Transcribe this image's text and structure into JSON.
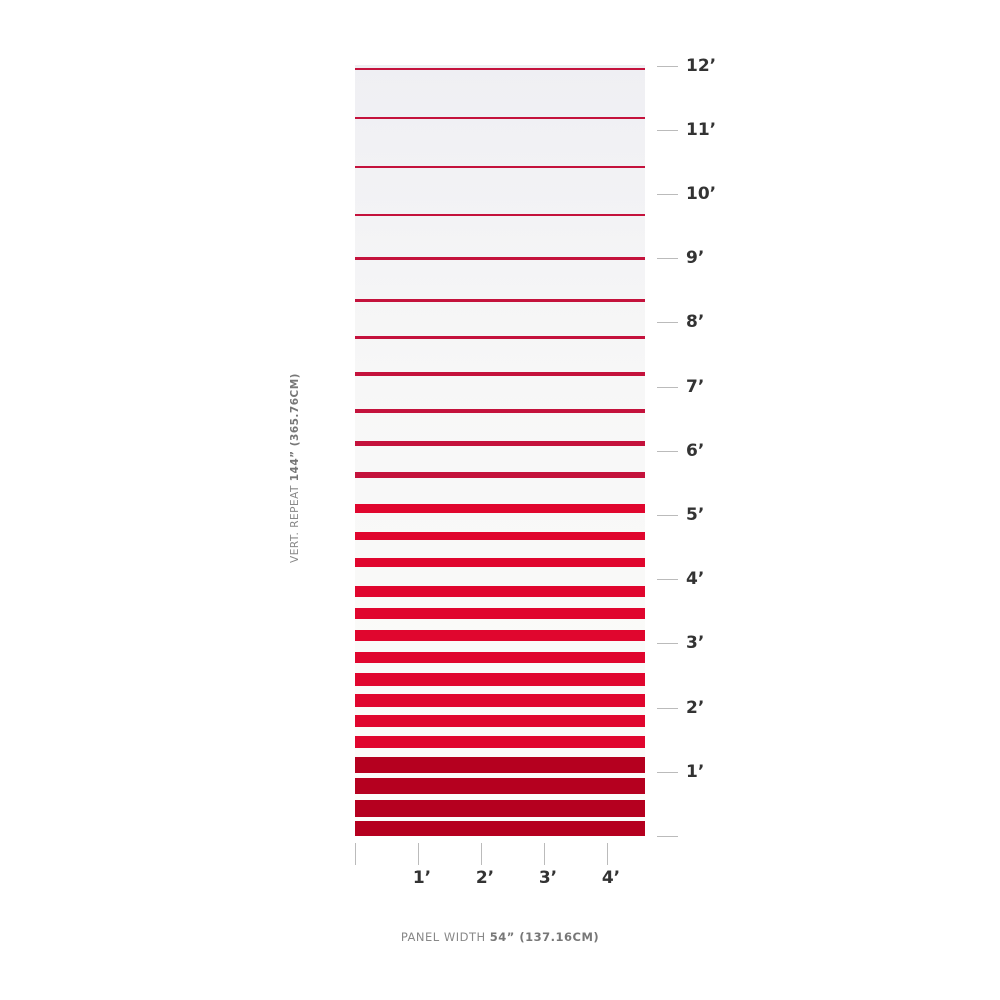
{
  "colors": {
    "stripe_top": "#c4123c",
    "stripe_mid": "#e0062e",
    "stripe_bottom": "#b5001f",
    "ruler": "#bbbbbb",
    "label": "#333333"
  },
  "vertical_ruler": {
    "labels": [
      "12’",
      "11’",
      "10’",
      "9’",
      "8’",
      "7’",
      "6’",
      "5’",
      "4’",
      "3’",
      "2’",
      "1’"
    ]
  },
  "horizontal_ruler": {
    "labels": [
      "1’",
      "2’",
      "3’",
      "4’"
    ]
  },
  "vertical_caption": {
    "prefix": "VERT. REPEAT ",
    "bold": "144” (365.76CM)"
  },
  "horizontal_caption": {
    "prefix": "PANEL WIDTH ",
    "bold": "54” (137.16CM)"
  }
}
